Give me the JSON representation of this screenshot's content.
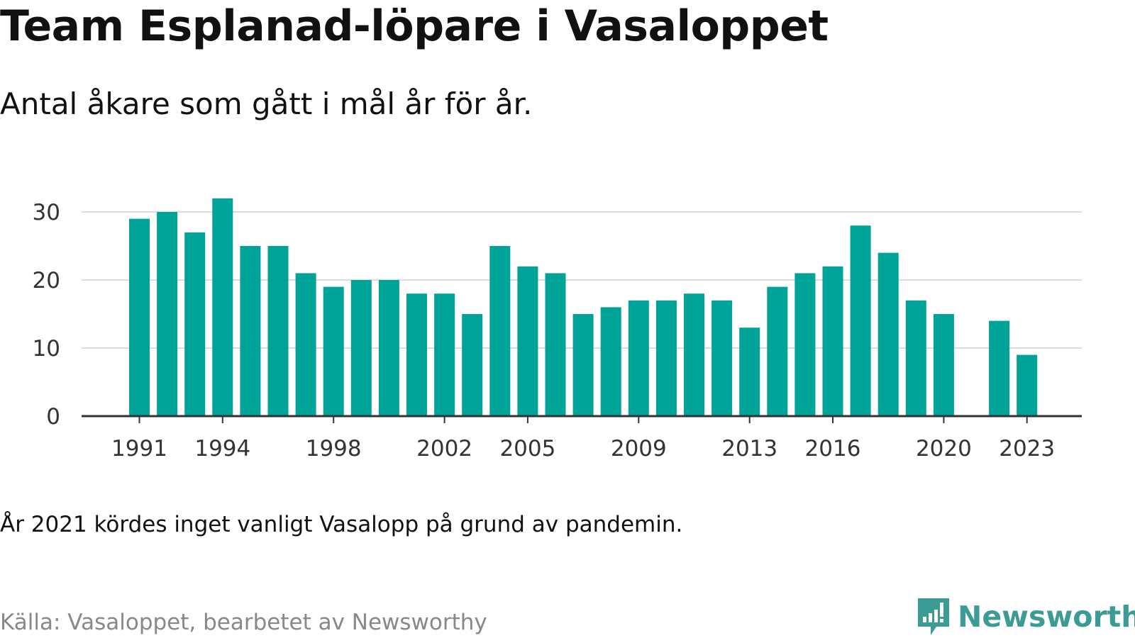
{
  "chart_data": {
    "type": "bar",
    "title": "Team Esplanad-löpare i Vasaloppet",
    "subtitle": "Antal åkare som gått i mål år för år.",
    "xlabel": "",
    "ylabel": "",
    "categories": [
      1991,
      1992,
      1993,
      1994,
      1995,
      1996,
      1997,
      1998,
      1999,
      2000,
      2001,
      2002,
      2003,
      2004,
      2005,
      2006,
      2007,
      2008,
      2009,
      2010,
      2011,
      2012,
      2013,
      2014,
      2015,
      2016,
      2017,
      2018,
      2019,
      2020,
      2021,
      2022,
      2023
    ],
    "values": [
      29,
      30,
      27,
      32,
      25,
      25,
      21,
      19,
      20,
      20,
      18,
      18,
      15,
      25,
      22,
      21,
      15,
      16,
      17,
      17,
      18,
      17,
      13,
      19,
      21,
      22,
      28,
      24,
      17,
      15,
      null,
      14,
      9
    ],
    "x_tick_labels": [
      "1991",
      "1994",
      "1998",
      "2002",
      "2005",
      "2009",
      "2013",
      "2016",
      "2020",
      "2023"
    ],
    "y_ticks": [
      0,
      10,
      20,
      30
    ],
    "ylim": [
      0,
      33
    ],
    "grid": true,
    "bar_color": "#00a398"
  },
  "note": "År 2021 kördes inget vanligt Vasalopp på grund av pandemin.",
  "source": "Källa: Vasaloppet, bearbetet av Newsworthy",
  "logo": {
    "text": "Newsworthy",
    "icon": "newsworthy-logo-icon",
    "color": "#3c9c95"
  }
}
